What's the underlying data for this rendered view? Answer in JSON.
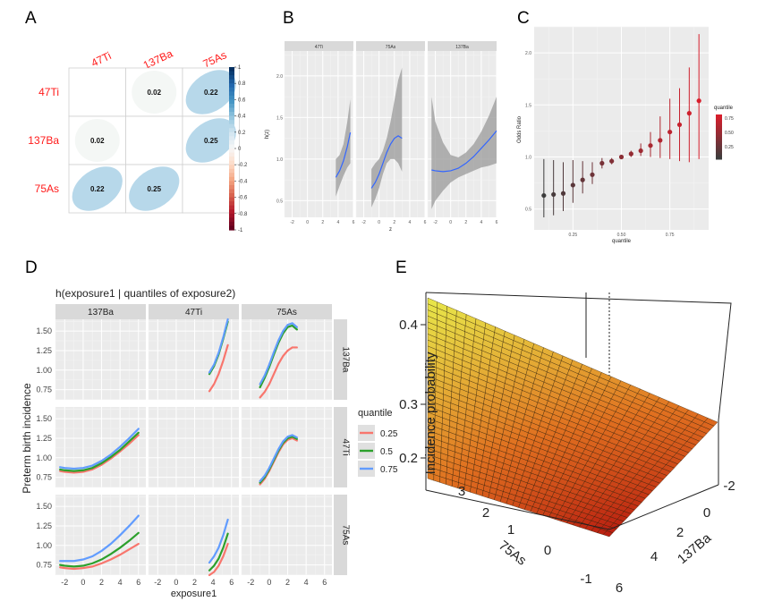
{
  "panels": {
    "A": "A",
    "B": "B",
    "C": "C",
    "D": "D",
    "E": "E"
  },
  "chart_data": [
    {
      "panel": "A",
      "type": "heatmap",
      "variables": [
        "47Ti",
        "137Ba",
        "75As"
      ],
      "matrix": [
        [
          null,
          0.02,
          0.22
        ],
        [
          0.02,
          null,
          0.25
        ],
        [
          0.22,
          0.25,
          null
        ]
      ],
      "cell_labels": [
        [
          "",
          "0.02",
          "0.22"
        ],
        [
          "0.02",
          "",
          "0.25"
        ],
        [
          "0.22",
          "0.25",
          ""
        ]
      ],
      "colorbar_ticks": [
        "1",
        "0.8",
        "0.6",
        "0.4",
        "0.2",
        "0",
        "-0.2",
        "-0.4",
        "-0.6",
        "-0.8",
        "-1"
      ],
      "colors": {
        "ellipse_fill": "#b7d8ea",
        "label": "#ff1a1a",
        "positive": "#1f5fa0",
        "negative": "#8a0c24"
      }
    },
    {
      "panel": "B",
      "type": "line",
      "facets": [
        "47Ti",
        "75As",
        "137Ba"
      ],
      "xlabel": "z",
      "ylabel": "h(z)",
      "xlim": [
        -3,
        6
      ],
      "ylim": [
        0.3,
        2.3
      ],
      "xticks": [
        -2,
        0,
        2,
        4,
        6
      ],
      "yticks": [
        0.5,
        1.0,
        1.5,
        2.0
      ],
      "ytick_labels": [
        "0.5",
        "1.0",
        "1.5",
        "2.0"
      ],
      "series": [
        {
          "name": "47Ti",
          "x": [
            3.7,
            4.2,
            4.7,
            5.2,
            5.6
          ],
          "y": [
            0.78,
            0.86,
            0.98,
            1.15,
            1.32
          ],
          "lower": [
            0.55,
            0.68,
            0.8,
            0.9,
            0.95
          ],
          "upper": [
            1.0,
            1.05,
            1.18,
            1.45,
            1.72
          ]
        },
        {
          "name": "75As",
          "x": [
            -1.0,
            -0.5,
            0.0,
            0.5,
            1.0,
            1.5,
            2.0,
            2.5,
            3.0
          ],
          "y": [
            0.65,
            0.72,
            0.82,
            0.95,
            1.08,
            1.18,
            1.25,
            1.28,
            1.25
          ],
          "lower": [
            0.42,
            0.52,
            0.65,
            0.82,
            0.95,
            1.0,
            1.0,
            0.95,
            0.85
          ],
          "upper": [
            0.88,
            0.95,
            1.0,
            1.1,
            1.25,
            1.45,
            1.7,
            1.95,
            2.1
          ]
        },
        {
          "name": "137Ba",
          "x": [
            -2.5,
            -2,
            -1,
            0,
            1,
            2,
            3,
            4,
            5,
            6
          ],
          "y": [
            0.87,
            0.86,
            0.85,
            0.86,
            0.89,
            0.95,
            1.03,
            1.13,
            1.23,
            1.34
          ],
          "lower": [
            0.4,
            0.5,
            0.62,
            0.72,
            0.78,
            0.82,
            0.86,
            0.9,
            0.92,
            0.95
          ],
          "upper": [
            1.75,
            1.45,
            1.2,
            1.05,
            1.02,
            1.08,
            1.18,
            1.33,
            1.52,
            1.75
          ]
        }
      ],
      "colors": {
        "line": "#3366ff",
        "band": "#9a9a9a"
      }
    },
    {
      "panel": "C",
      "type": "scatter",
      "xlabel": "quantile",
      "ylabel": "Odds Ratio",
      "xlim": [
        0.05,
        0.95
      ],
      "ylim": [
        0.3,
        2.25
      ],
      "xticks": [
        0.25,
        0.5,
        0.75
      ],
      "xtick_labels": [
        "0.25",
        "0.50",
        "0.75"
      ],
      "yticks": [
        0.5,
        1.0,
        1.5,
        2.0
      ],
      "ytick_labels": [
        "0.5",
        "1.0",
        "1.5",
        "2.0"
      ],
      "x": [
        0.1,
        0.15,
        0.2,
        0.25,
        0.3,
        0.35,
        0.4,
        0.45,
        0.5,
        0.55,
        0.6,
        0.65,
        0.7,
        0.75,
        0.8,
        0.85,
        0.9
      ],
      "y": [
        0.63,
        0.64,
        0.65,
        0.73,
        0.78,
        0.83,
        0.94,
        0.96,
        1.0,
        1.03,
        1.06,
        1.11,
        1.16,
        1.24,
        1.31,
        1.42,
        1.54
      ],
      "lower": [
        0.42,
        0.44,
        0.48,
        0.56,
        0.65,
        0.74,
        0.89,
        0.93,
        0.99,
        1.0,
        1.01,
        1.0,
        0.99,
        0.98,
        0.96,
        0.95,
        0.98
      ],
      "upper": [
        0.98,
        0.97,
        0.95,
        0.97,
        0.96,
        0.95,
        0.99,
        0.99,
        1.01,
        1.06,
        1.13,
        1.24,
        1.39,
        1.56,
        1.66,
        1.86,
        2.18
      ],
      "legend": {
        "title": "quantile",
        "ticks": [
          "0.75",
          "0.50",
          "0.25"
        ],
        "position": "right"
      },
      "colors": {
        "low": "#3d3d3d",
        "high": "#d81e2c"
      }
    },
    {
      "panel": "D",
      "type": "line",
      "title": "h(exposure1 | quantiles of exposure2)",
      "xlabel": "exposure1",
      "ylabel": "Preterm birth incidence",
      "column_facets": [
        "137Ba",
        "47Ti",
        "75As"
      ],
      "row_facets": [
        "137Ba",
        "47Ti",
        "75As"
      ],
      "xlim": [
        -3,
        6.8
      ],
      "ylim": [
        0.62,
        1.65
      ],
      "xticks": [
        -2,
        0,
        2,
        4,
        6
      ],
      "yticks": [
        0.75,
        1.0,
        1.25,
        1.5
      ],
      "ytick_labels": [
        "0.75",
        "1.00",
        "1.25",
        "1.50"
      ],
      "legend": {
        "title": "quantile",
        "entries": [
          "0.25",
          "0.5",
          "0.75"
        ],
        "position": "right"
      },
      "colors": {
        "0.25": "#f8766d",
        "0.5": "#2ca02c",
        "0.75": "#619cff"
      },
      "cells": [
        {
          "row": 0,
          "col": 1,
          "x": [
            3.6,
            4.1,
            4.6,
            5.1,
            5.6
          ],
          "series": [
            [
              0.73,
              0.82,
              0.95,
              1.12,
              1.32
            ],
            [
              0.95,
              1.05,
              1.2,
              1.4,
              1.62
            ],
            [
              0.97,
              1.07,
              1.22,
              1.42,
              1.65
            ]
          ]
        },
        {
          "row": 0,
          "col": 2,
          "x": [
            -1.0,
            -0.5,
            0.0,
            0.5,
            1.0,
            1.5,
            2.0,
            2.5,
            3.0
          ],
          "series": [
            [
              0.65,
              0.72,
              0.82,
              0.95,
              1.08,
              1.18,
              1.25,
              1.29,
              1.29
            ],
            [
              0.78,
              0.9,
              1.04,
              1.2,
              1.35,
              1.47,
              1.55,
              1.57,
              1.52
            ],
            [
              0.82,
              0.93,
              1.07,
              1.23,
              1.38,
              1.5,
              1.58,
              1.6,
              1.55
            ]
          ]
        },
        {
          "row": 1,
          "col": 0,
          "x": [
            -2.5,
            -2,
            -1,
            0,
            1,
            2,
            3,
            4,
            5,
            6
          ],
          "series": [
            [
              0.83,
              0.82,
              0.81,
              0.82,
              0.85,
              0.91,
              0.99,
              1.08,
              1.18,
              1.29
            ],
            [
              0.85,
              0.84,
              0.83,
              0.84,
              0.87,
              0.93,
              1.01,
              1.1,
              1.21,
              1.32
            ],
            [
              0.88,
              0.87,
              0.86,
              0.87,
              0.9,
              0.96,
              1.04,
              1.14,
              1.25,
              1.37
            ]
          ]
        },
        {
          "row": 1,
          "col": 2,
          "x": [
            -1.0,
            -0.5,
            0.0,
            0.5,
            1.0,
            1.5,
            2.0,
            2.5,
            3.0
          ],
          "series": [
            [
              0.66,
              0.73,
              0.83,
              0.95,
              1.07,
              1.17,
              1.23,
              1.25,
              1.22
            ],
            [
              0.68,
              0.75,
              0.85,
              0.97,
              1.09,
              1.19,
              1.25,
              1.27,
              1.24
            ],
            [
              0.7,
              0.77,
              0.87,
              0.99,
              1.11,
              1.21,
              1.27,
              1.29,
              1.26
            ]
          ]
        },
        {
          "row": 2,
          "col": 0,
          "x": [
            -2.5,
            -2,
            -1,
            0,
            1,
            2,
            3,
            4,
            5,
            6
          ],
          "series": [
            [
              0.72,
              0.71,
              0.7,
              0.71,
              0.73,
              0.77,
              0.82,
              0.88,
              0.95,
              1.02
            ],
            [
              0.75,
              0.74,
              0.73,
              0.74,
              0.77,
              0.82,
              0.89,
              0.97,
              1.06,
              1.16
            ],
            [
              0.8,
              0.8,
              0.8,
              0.82,
              0.86,
              0.93,
              1.02,
              1.13,
              1.25,
              1.38
            ]
          ]
        },
        {
          "row": 2,
          "col": 1,
          "x": [
            3.6,
            4.1,
            4.6,
            5.1,
            5.6
          ],
          "series": [
            [
              0.62,
              0.66,
              0.74,
              0.86,
              1.02
            ],
            [
              0.68,
              0.74,
              0.83,
              0.97,
              1.15
            ],
            [
              0.78,
              0.86,
              0.97,
              1.13,
              1.33
            ]
          ]
        }
      ]
    },
    {
      "panel": "E",
      "type": "surface",
      "zlabel": "Incidence probability",
      "xlabel": "75As",
      "ylabel": "137Ba",
      "zticks": [
        "0.4",
        "0.3",
        "0.2"
      ],
      "xticks": [
        "3",
        "2",
        "1",
        "0",
        "-1"
      ],
      "yticks": [
        "6",
        "4",
        "2",
        "0",
        "-2"
      ],
      "colors": {
        "top": "#e8e84a",
        "mid": "#e07020",
        "bottom": "#b81c10"
      }
    }
  ]
}
